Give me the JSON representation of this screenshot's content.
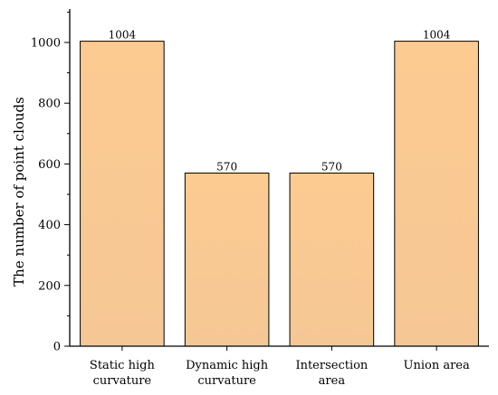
{
  "chart_data": {
    "type": "bar",
    "title": "",
    "xlabel": "",
    "ylabel": "The number of point clouds",
    "categories": [
      [
        "Static high",
        "curvature"
      ],
      [
        "Dynamic high",
        "curvature"
      ],
      [
        "Intersection",
        "area"
      ],
      [
        "Union area"
      ]
    ],
    "values": [
      1004,
      570,
      570,
      1004
    ],
    "data_labels": [
      "1004",
      "570",
      "570",
      "1004"
    ],
    "ylim": [
      0,
      1110
    ],
    "yticks": [
      0,
      200,
      400,
      600,
      800,
      1000
    ],
    "grid": false,
    "legend": "none",
    "colors": {
      "bar_top": "#fccb91",
      "bar_bottom": "#f5c795",
      "bar_stroke": "#000000",
      "axis": "#000000"
    }
  }
}
